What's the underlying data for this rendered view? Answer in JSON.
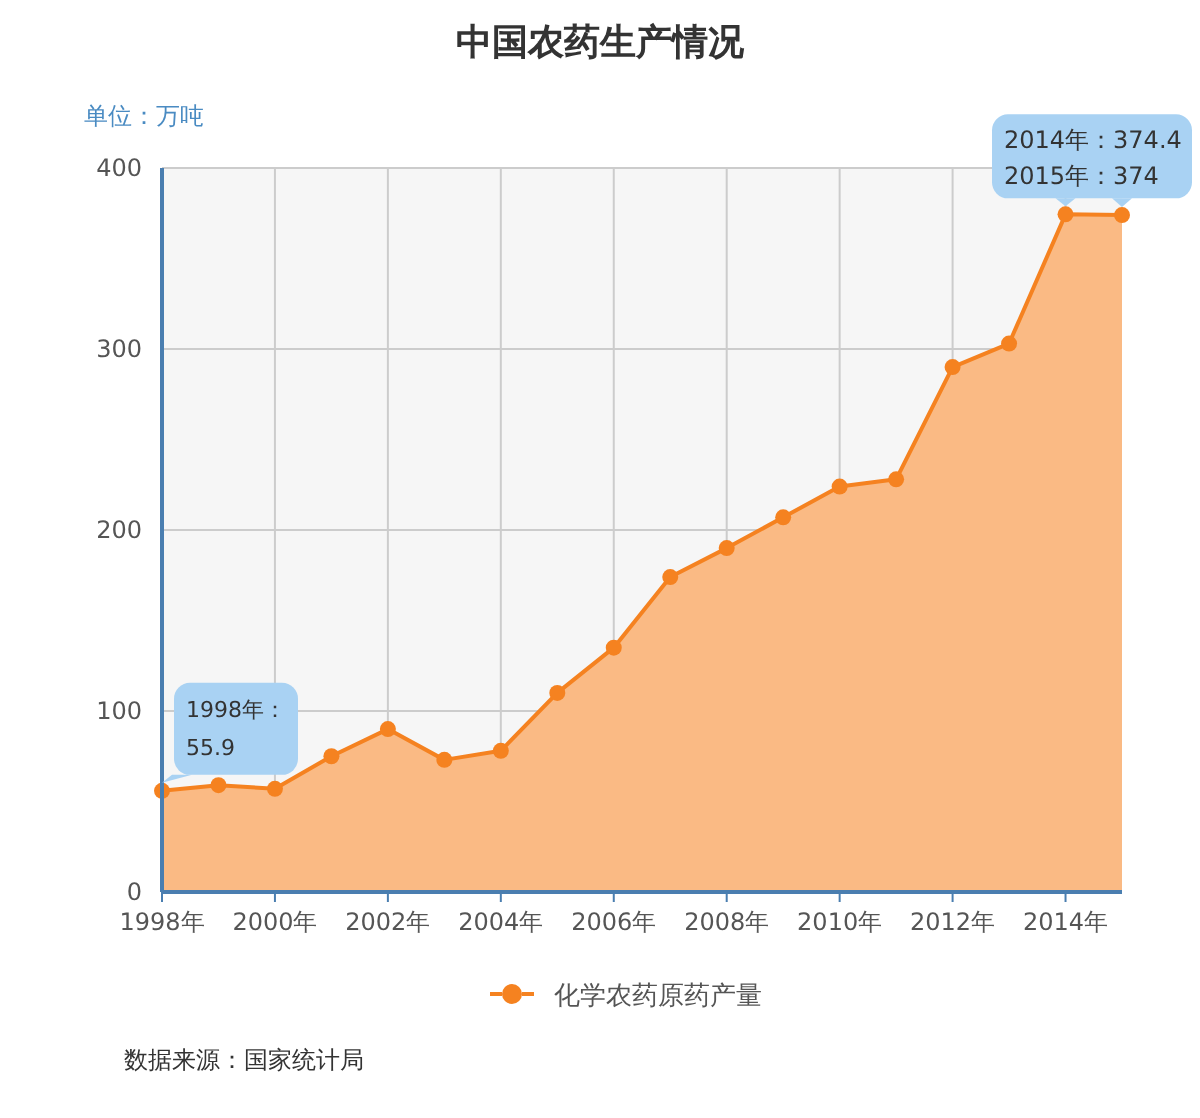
{
  "chart_data": {
    "type": "area",
    "title": "中国农药生产情况",
    "ylabel": "单位：万吨",
    "x": [
      1998,
      1999,
      2000,
      2001,
      2002,
      2003,
      2004,
      2005,
      2006,
      2007,
      2008,
      2009,
      2010,
      2011,
      2012,
      2013,
      2014,
      2015
    ],
    "series": [
      {
        "name": "化学农药原药产量",
        "color": "#f58220",
        "values": [
          55.9,
          59,
          57,
          75,
          90,
          73,
          78,
          110,
          135,
          174,
          190,
          207,
          224,
          228,
          290,
          303,
          374.4,
          374
        ]
      }
    ],
    "xlim": [
      1998,
      2015
    ],
    "xticks": [
      {
        "value": 1998,
        "label": "1998年"
      },
      {
        "value": 2000,
        "label": "2000年"
      },
      {
        "value": 2002,
        "label": "2002年"
      },
      {
        "value": 2004,
        "label": "2004年"
      },
      {
        "value": 2006,
        "label": "2006年"
      },
      {
        "value": 2008,
        "label": "2008年"
      },
      {
        "value": 2010,
        "label": "2010年"
      },
      {
        "value": 2012,
        "label": "2012年"
      },
      {
        "value": 2014,
        "label": "2014年"
      }
    ],
    "ylim": [
      0,
      400
    ],
    "yticks": [
      0,
      100,
      200,
      300,
      400
    ],
    "grid": true,
    "marker": "circle",
    "legend": "bottom",
    "annotations": [
      {
        "text": "1998年：55.9",
        "x": 1998,
        "y": 55.9
      },
      {
        "text": "2014年：374.4",
        "x": 2014,
        "y": 374.4
      },
      {
        "text": "2015年：374",
        "x": 2015,
        "y": 374
      },
      "数据来源：国家统计局"
    ]
  }
}
